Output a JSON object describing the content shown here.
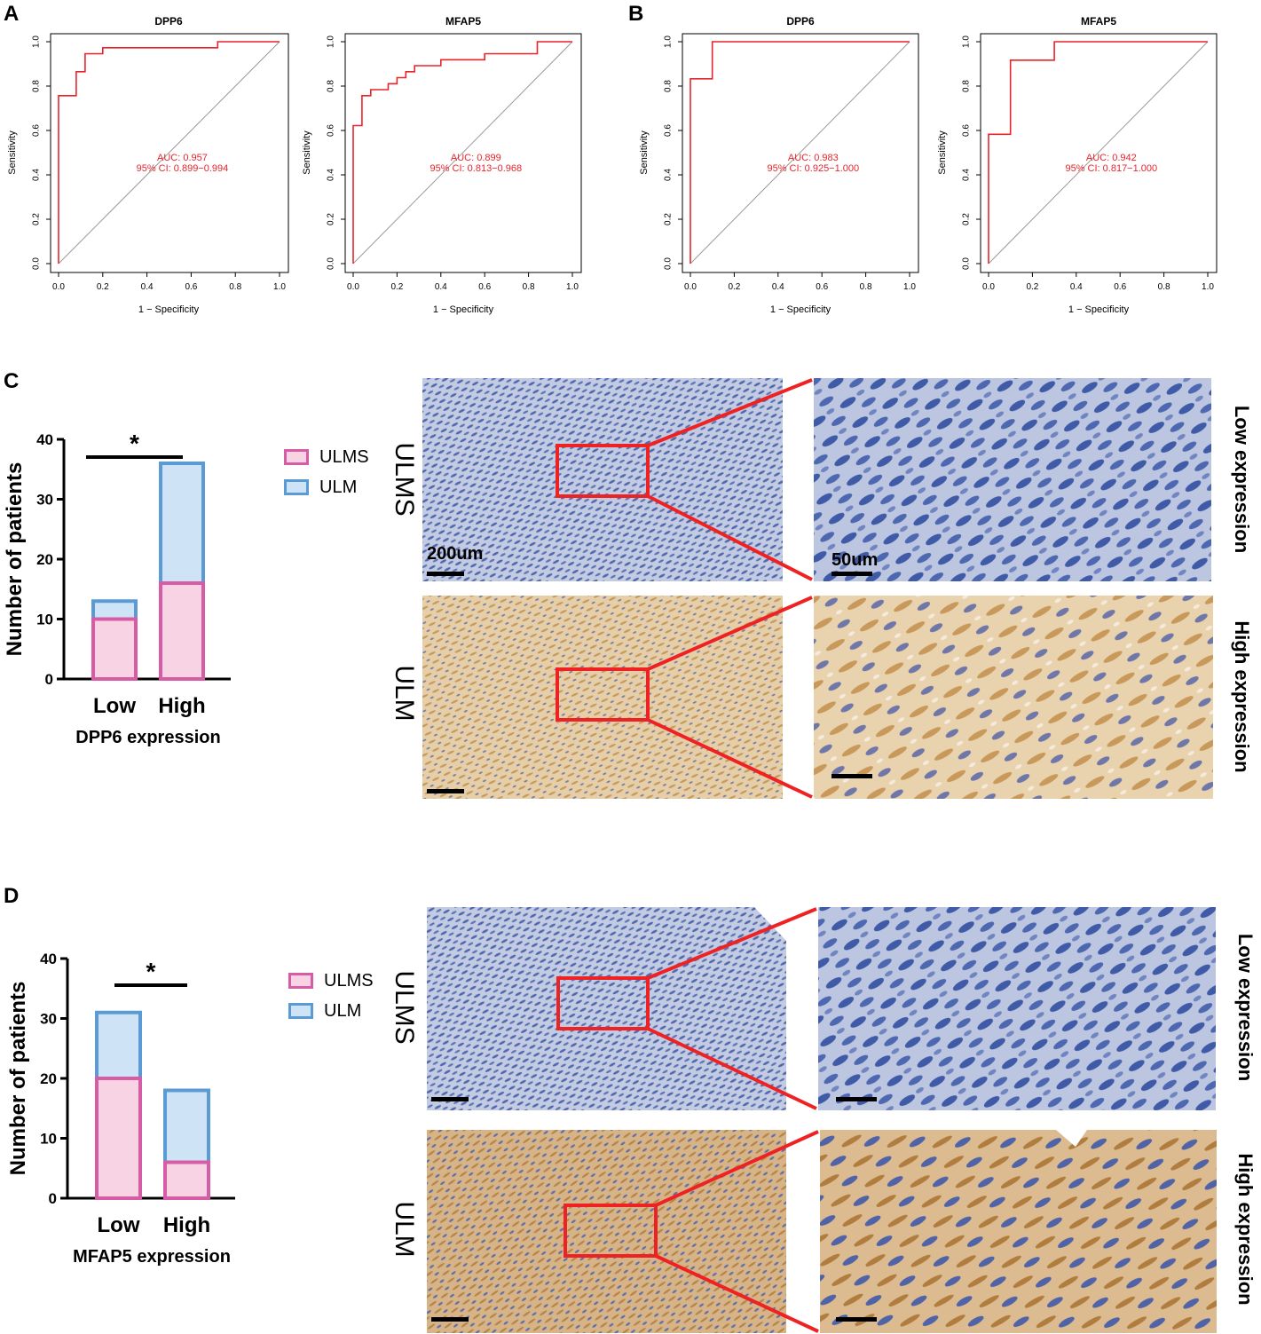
{
  "colors": {
    "roc_line": "#e8242b",
    "diagonal": "#9a9a9a",
    "ulms_fill": "#f8d3e4",
    "ulms_stroke": "#d65ca5",
    "ulm_fill": "#cfe3f6",
    "ulm_stroke": "#5b9bd5",
    "zoom_box": "#ee2222",
    "stain_blue": "#5d74b6",
    "stain_brown": "#d8b98c"
  },
  "panels": {
    "A": "A",
    "B": "B",
    "C": "C",
    "D": "D"
  },
  "roc_common": {
    "xlabel": "1 − Specificity",
    "ylabel": "Sensitivity",
    "ticks": [
      "0.0",
      "0.2",
      "0.4",
      "0.6",
      "0.8",
      "1.0"
    ]
  },
  "roc_charts": [
    {
      "title": "DPP6",
      "auc": "AUC: 0.957",
      "ci": "95% CI: 0.899−0.994",
      "points": [
        [
          0,
          0
        ],
        [
          0,
          0.757
        ],
        [
          0.08,
          0.757
        ],
        [
          0.08,
          0.865
        ],
        [
          0.12,
          0.865
        ],
        [
          0.12,
          0.946
        ],
        [
          0.2,
          0.946
        ],
        [
          0.2,
          0.973
        ],
        [
          0.72,
          0.973
        ],
        [
          0.72,
          1
        ],
        [
          1,
          1
        ]
      ]
    },
    {
      "title": "MFAP5",
      "auc": "AUC: 0.899",
      "ci": "95% CI: 0.813−0.968",
      "points": [
        [
          0,
          0
        ],
        [
          0,
          0.622
        ],
        [
          0.04,
          0.622
        ],
        [
          0.04,
          0.757
        ],
        [
          0.08,
          0.757
        ],
        [
          0.08,
          0.784
        ],
        [
          0.16,
          0.784
        ],
        [
          0.16,
          0.811
        ],
        [
          0.2,
          0.811
        ],
        [
          0.2,
          0.838
        ],
        [
          0.24,
          0.838
        ],
        [
          0.24,
          0.865
        ],
        [
          0.28,
          0.865
        ],
        [
          0.28,
          0.892
        ],
        [
          0.4,
          0.892
        ],
        [
          0.4,
          0.919
        ],
        [
          0.6,
          0.919
        ],
        [
          0.6,
          0.946
        ],
        [
          0.84,
          0.946
        ],
        [
          0.84,
          1
        ],
        [
          1,
          1
        ]
      ]
    },
    {
      "title": "DPP6",
      "auc": "AUC: 0.983",
      "ci": "95% CI: 0.925−1.000",
      "points": [
        [
          0,
          0
        ],
        [
          0,
          0.833
        ],
        [
          0.1,
          0.833
        ],
        [
          0.1,
          1
        ],
        [
          1,
          1
        ]
      ]
    },
    {
      "title": "MFAP5",
      "auc": "AUC: 0.942",
      "ci": "95% CI: 0.817−1.000",
      "points": [
        [
          0,
          0
        ],
        [
          0,
          0.583
        ],
        [
          0.1,
          0.583
        ],
        [
          0.1,
          0.917
        ],
        [
          0.3,
          0.917
        ],
        [
          0.3,
          1
        ],
        [
          1,
          1
        ]
      ]
    }
  ],
  "bar_common": {
    "ylabel": "Number of patients",
    "yticks": [
      "0",
      "10",
      "20",
      "30",
      "40"
    ],
    "ylim": [
      0,
      40
    ],
    "categories": [
      "Low",
      "High"
    ],
    "significance": "*",
    "legend": [
      "ULMS",
      "ULM"
    ]
  },
  "chart_data": [
    {
      "type": "line",
      "title": "DPP6",
      "xlabel": "1 − Specificity",
      "ylabel": "Sensitivity",
      "xlim": [
        0,
        1
      ],
      "ylim": [
        0,
        1
      ],
      "annotation": [
        "AUC: 0.957",
        "95% CI: 0.899−0.994"
      ]
    },
    {
      "type": "line",
      "title": "MFAP5",
      "xlabel": "1 − Specificity",
      "ylabel": "Sensitivity",
      "xlim": [
        0,
        1
      ],
      "ylim": [
        0,
        1
      ],
      "annotation": [
        "AUC: 0.899",
        "95% CI: 0.813−0.968"
      ]
    },
    {
      "type": "line",
      "title": "DPP6",
      "xlabel": "1 − Specificity",
      "ylabel": "Sensitivity",
      "xlim": [
        0,
        1
      ],
      "ylim": [
        0,
        1
      ],
      "annotation": [
        "AUC: 0.983",
        "95% CI: 0.925−1.000"
      ]
    },
    {
      "type": "line",
      "title": "MFAP5",
      "xlabel": "1 − Specificity",
      "ylabel": "Sensitivity",
      "xlim": [
        0,
        1
      ],
      "ylim": [
        0,
        1
      ],
      "annotation": [
        "AUC: 0.942",
        "95% CI: 0.817−1.000"
      ]
    },
    {
      "type": "bar",
      "stacked": true,
      "xlabel": "DPP6 expression",
      "ylabel": "Number of patients",
      "categories": [
        "Low",
        "High"
      ],
      "ylim": [
        0,
        40
      ],
      "series": [
        {
          "name": "ULMS",
          "values": [
            10,
            16
          ]
        },
        {
          "name": "ULM",
          "values": [
            3,
            20
          ]
        }
      ],
      "totals": [
        13,
        36
      ]
    },
    {
      "type": "bar",
      "stacked": true,
      "xlabel": "MFAP5 expression",
      "ylabel": "Number of patients",
      "categories": [
        "Low",
        "High"
      ],
      "ylim": [
        0,
        40
      ],
      "series": [
        {
          "name": "ULMS",
          "values": [
            20,
            6
          ]
        },
        {
          "name": "ULM",
          "values": [
            11,
            12
          ]
        }
      ],
      "totals": [
        31,
        18
      ]
    }
  ],
  "ihc": {
    "C": {
      "top_sample": "ULMS",
      "bottom_sample": "ULM",
      "top_expression": "Low expression",
      "bottom_expression": "High expression",
      "scale_low": "200um",
      "scale_high": "50um"
    },
    "D": {
      "top_sample": "ULMS",
      "bottom_sample": "ULM",
      "top_expression": "Low expression",
      "bottom_expression": "High expression"
    }
  }
}
